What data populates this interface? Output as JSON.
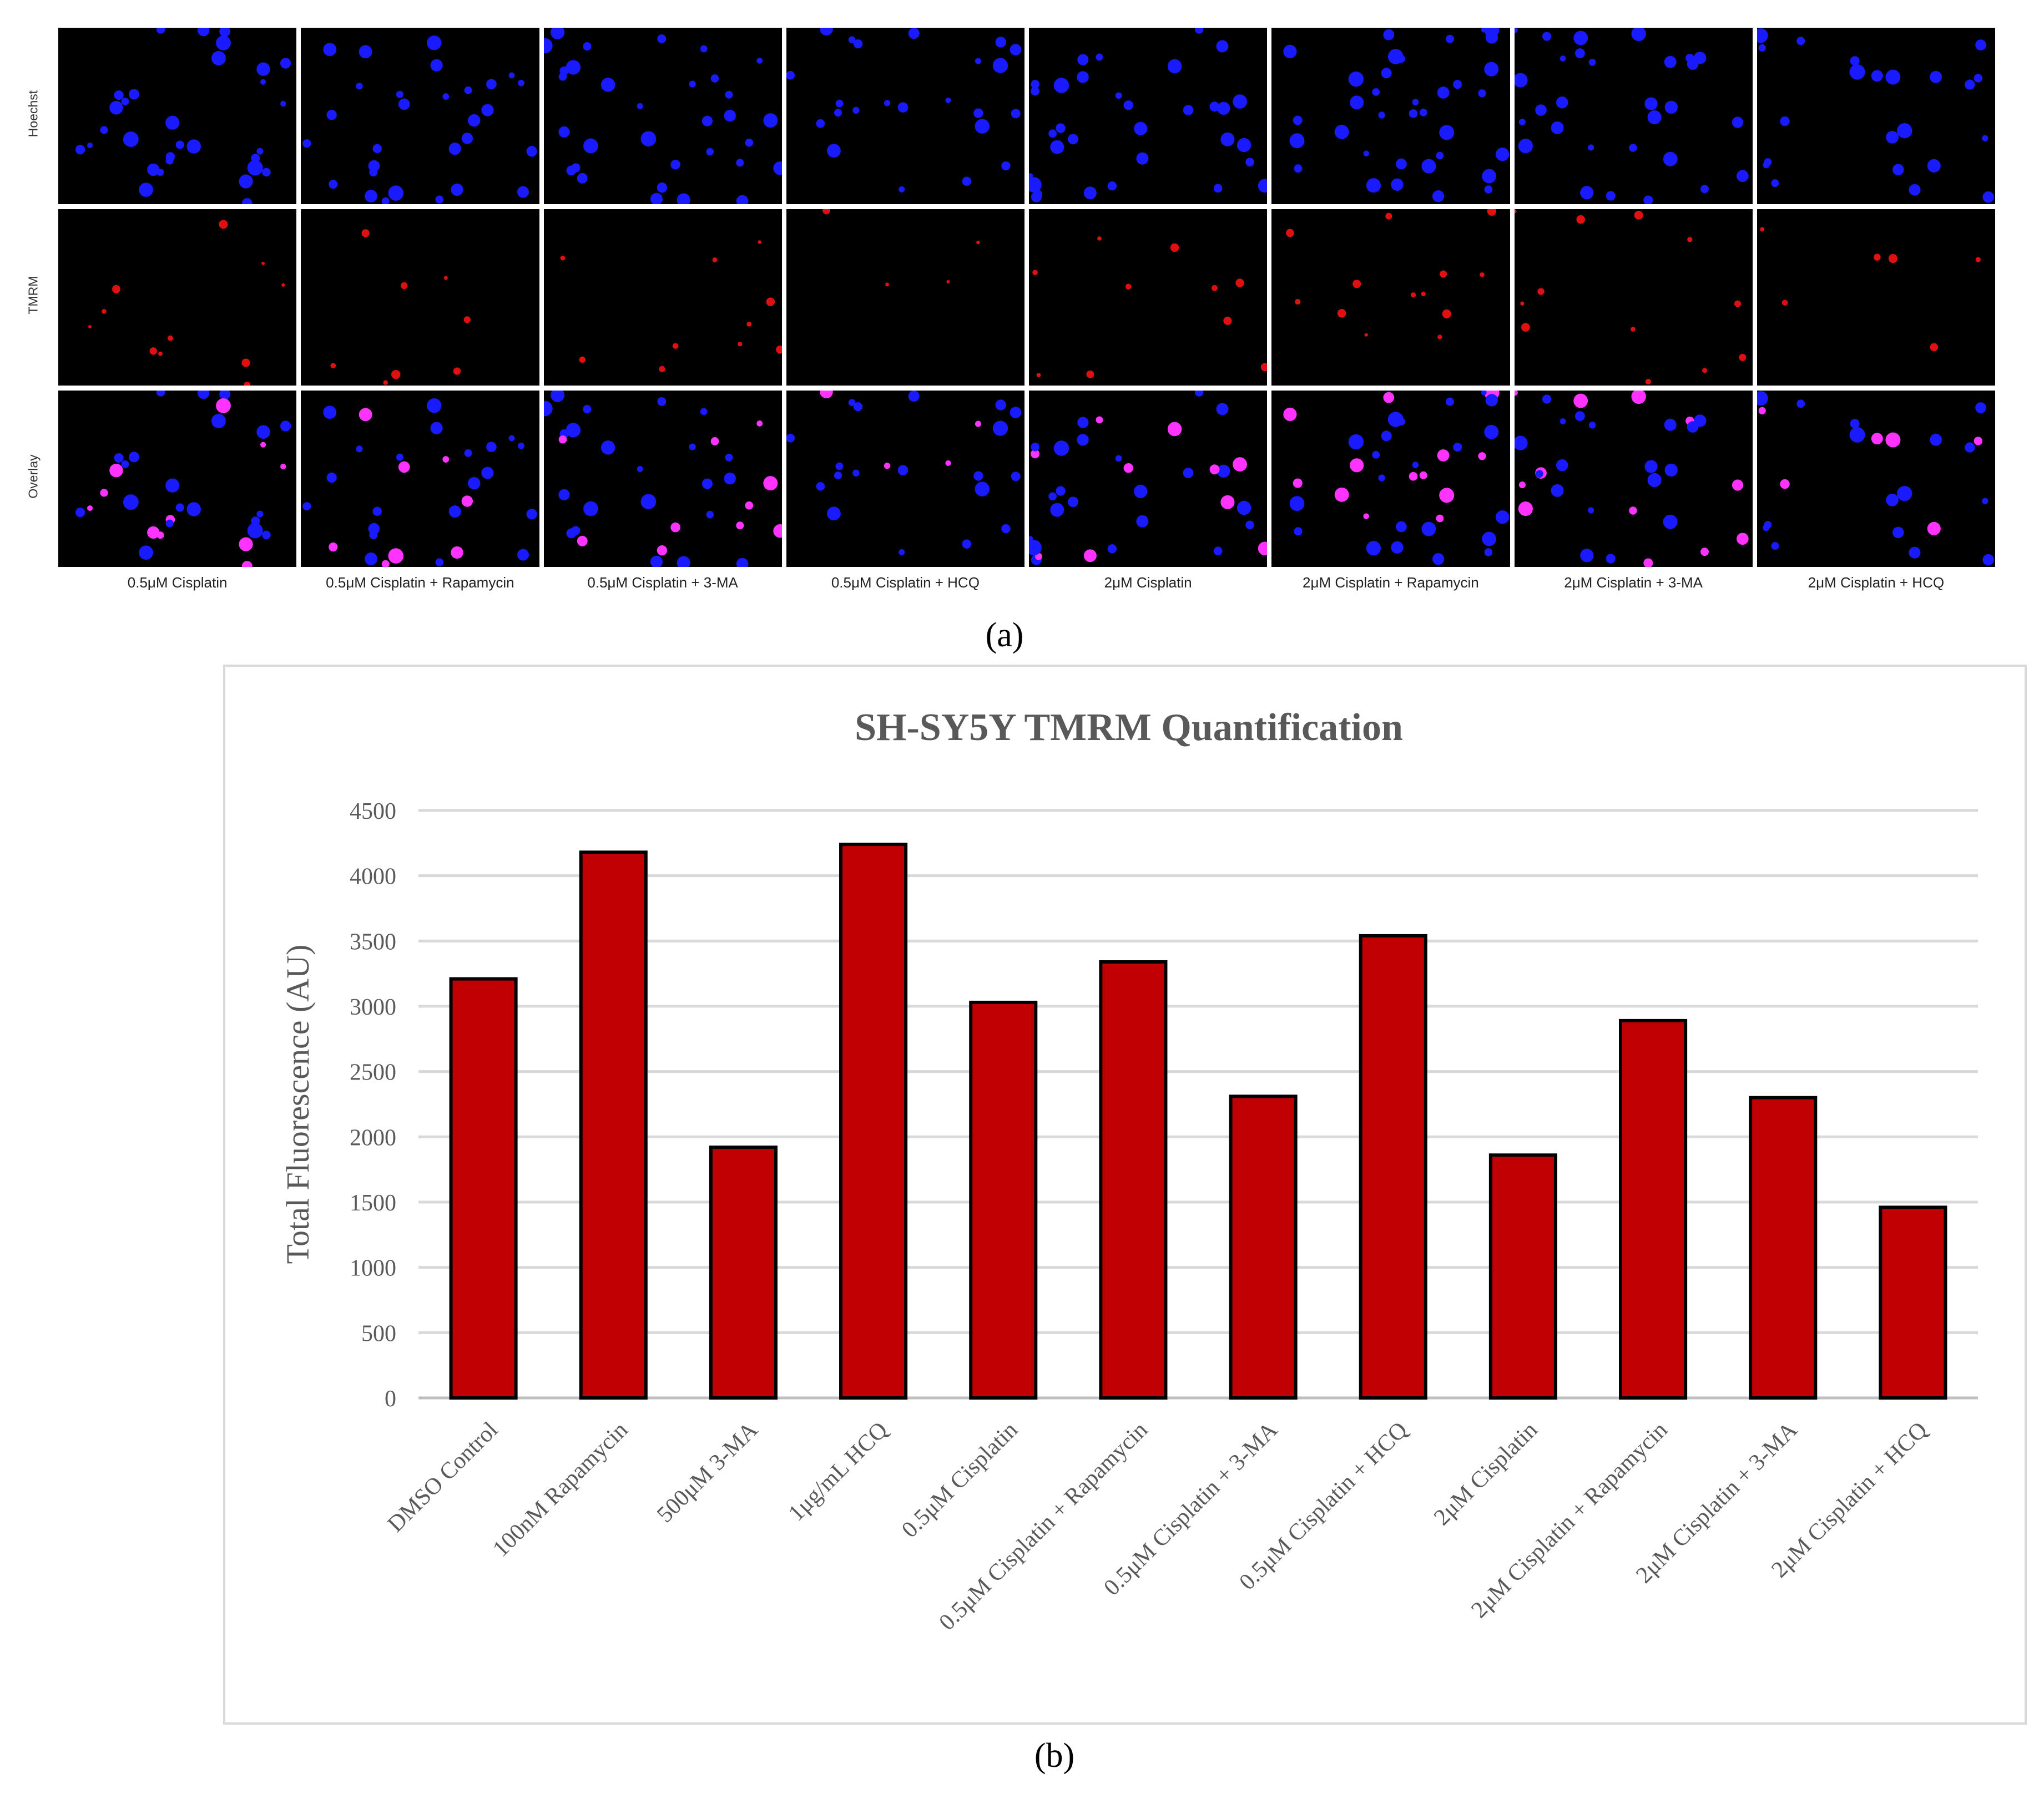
{
  "panel_a": {
    "label": "(a)",
    "rows": [
      "Hoechst",
      "TMRM",
      "Overlay"
    ],
    "columns": [
      "0.5μM Cisplatin",
      "0.5μM Cisplatin + Rapamycin",
      "0.5μM Cisplatin + 3-MA",
      "0.5μM Cisplatin + HCQ",
      "2μM Cisplatin",
      "2μM Cisplatin + Rapamycin",
      "2μM Cisplatin + 3-MA",
      "2μM Cisplatin + HCQ"
    ],
    "colors": {
      "hoechst": "#1a1aff",
      "tmrm": "#e01010",
      "overlay_merge": "#ff33ff",
      "background": "#000000"
    }
  },
  "panel_b": {
    "label": "(b)"
  },
  "chart_data": {
    "type": "bar",
    "title": "SH-SY5Y TMRM Quantification",
    "xlabel": "",
    "ylabel": "Total Fluorescence (AU)",
    "ylim": [
      0,
      4500
    ],
    "yticks": [
      0,
      500,
      1000,
      1500,
      2000,
      2500,
      3000,
      3500,
      4000,
      4500
    ],
    "grid": true,
    "bar_color": "#c00000",
    "bar_edge_color": "#000000",
    "categories": [
      "DMSO Control",
      "100nM Rapamycin",
      "500μM 3-MA",
      "1μg/mL HCQ",
      "0.5μM Cisplatin",
      "0.5μM Cisplatin + Rapamycin",
      "0.5μM Cisplatin + 3-MA",
      "0.5μM Cisplatin + HCQ",
      "2μM Cisplatin",
      "2μM Cisplatin + Rapamycin",
      "2μM Cisplatin + 3-MA",
      "2μM Cisplatin + HCQ"
    ],
    "values": [
      3210,
      4180,
      1920,
      4240,
      3030,
      3340,
      2310,
      3540,
      1860,
      2890,
      2300,
      1460
    ]
  }
}
